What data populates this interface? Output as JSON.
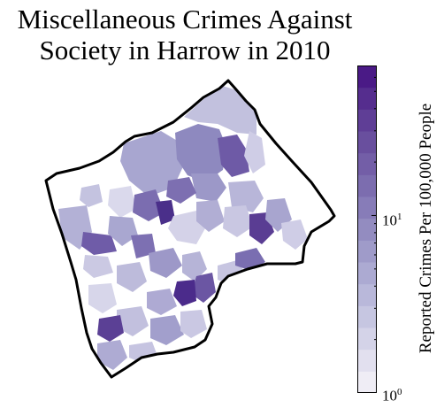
{
  "title_line1": "Miscellaneous Crimes Against",
  "title_line2": "Society in Harrow in 2010",
  "colorbar": {
    "label": "Reported Crimes Per 100,000 People",
    "scale": "log",
    "range": [
      1,
      70
    ],
    "ticks": [
      {
        "base": "10",
        "exp": "0"
      },
      {
        "base": "10",
        "exp": "1"
      }
    ],
    "colors": [
      "#efedf5",
      "#e2e0ef",
      "#d4d3e8",
      "#c6c6e1",
      "#b9b8da",
      "#acaad2",
      "#9f9bc9",
      "#938cc0",
      "#877cb8",
      "#7c6daf",
      "#735ea7",
      "#694f9e",
      "#5f3e96",
      "#552d8e",
      "#4a1a86"
    ]
  },
  "boundary_color": "#000000"
}
